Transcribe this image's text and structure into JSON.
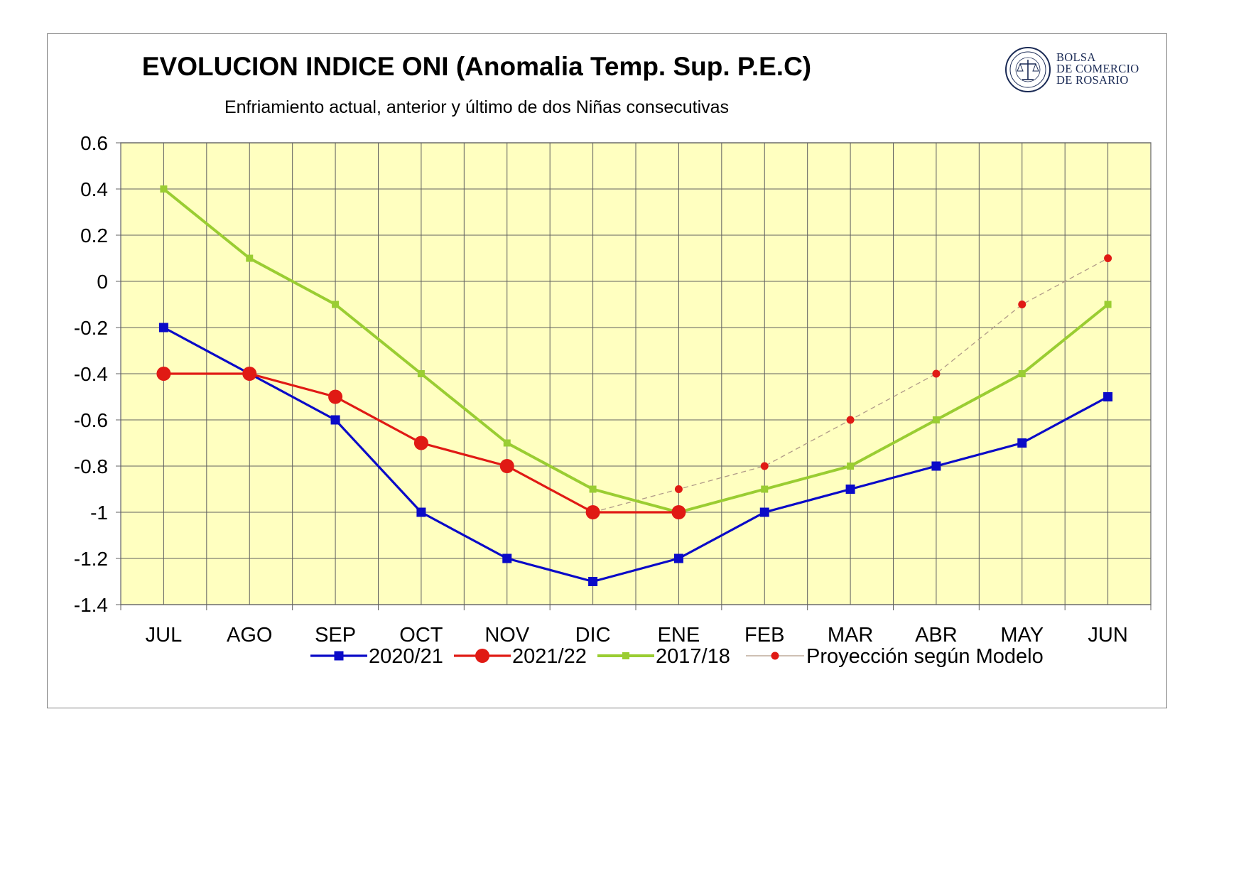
{
  "chart_data": {
    "type": "line",
    "title": "EVOLUCION INDICE ONI (Anomalia Temp. Sup. P.E.C)",
    "subtitle": "Enfriamiento actual, anterior y último de dos Niñas consecutivas",
    "xlabel": "",
    "ylabel": "",
    "categories": [
      "JUL",
      "AGO",
      "SEP",
      "OCT",
      "NOV",
      "DIC",
      "ENE",
      "FEB",
      "MAR",
      "ABR",
      "MAY",
      "JUN"
    ],
    "ylim": [
      -1.4,
      0.6
    ],
    "yticks": [
      0.6,
      0.4,
      0.2,
      0,
      -0.2,
      -0.4,
      -0.6,
      -0.8,
      -1,
      -1.2,
      -1.4
    ],
    "ytick_labels": [
      "0.6",
      "0.4",
      "0.2",
      "0",
      "-0.2",
      "-0.4",
      "-0.6",
      "-0.8",
      "-1",
      "-1.2",
      "-1.4"
    ],
    "grid": true,
    "legend_position": "bottom",
    "plot_background": "#ffffc0",
    "series": [
      {
        "name": "2020/21",
        "color": "#0a0ac8",
        "marker": "square",
        "values": [
          -0.2,
          -0.4,
          -0.6,
          -1.0,
          -1.2,
          -1.3,
          -1.2,
          -1.0,
          -0.9,
          -0.8,
          -0.7,
          -0.5
        ]
      },
      {
        "name": "2021/22",
        "color": "#e01a14",
        "marker": "circle",
        "values": [
          -0.4,
          -0.4,
          -0.5,
          -0.7,
          -0.8,
          -1.0,
          -1.0,
          null,
          null,
          null,
          null,
          null
        ]
      },
      {
        "name": "2017/18",
        "color": "#9acd32",
        "marker": "small-square",
        "values": [
          0.4,
          0.1,
          -0.1,
          -0.4,
          -0.7,
          -0.9,
          -1.0,
          -0.9,
          -0.8,
          -0.6,
          -0.4,
          -0.1
        ]
      },
      {
        "name": "Proyección según Modelo",
        "color": "#e01a14",
        "marker": "dot",
        "line": "dashed",
        "values": [
          null,
          null,
          null,
          null,
          null,
          -1.0,
          -0.9,
          -0.8,
          -0.6,
          -0.4,
          -0.1,
          0.1
        ]
      }
    ]
  },
  "logo": {
    "line1": "BOLSA",
    "line2": "DE COMERCIO",
    "line3": "DE ROSARIO",
    "seal_text": "BOLSA DE COMERCIO DE ROSARIO"
  }
}
